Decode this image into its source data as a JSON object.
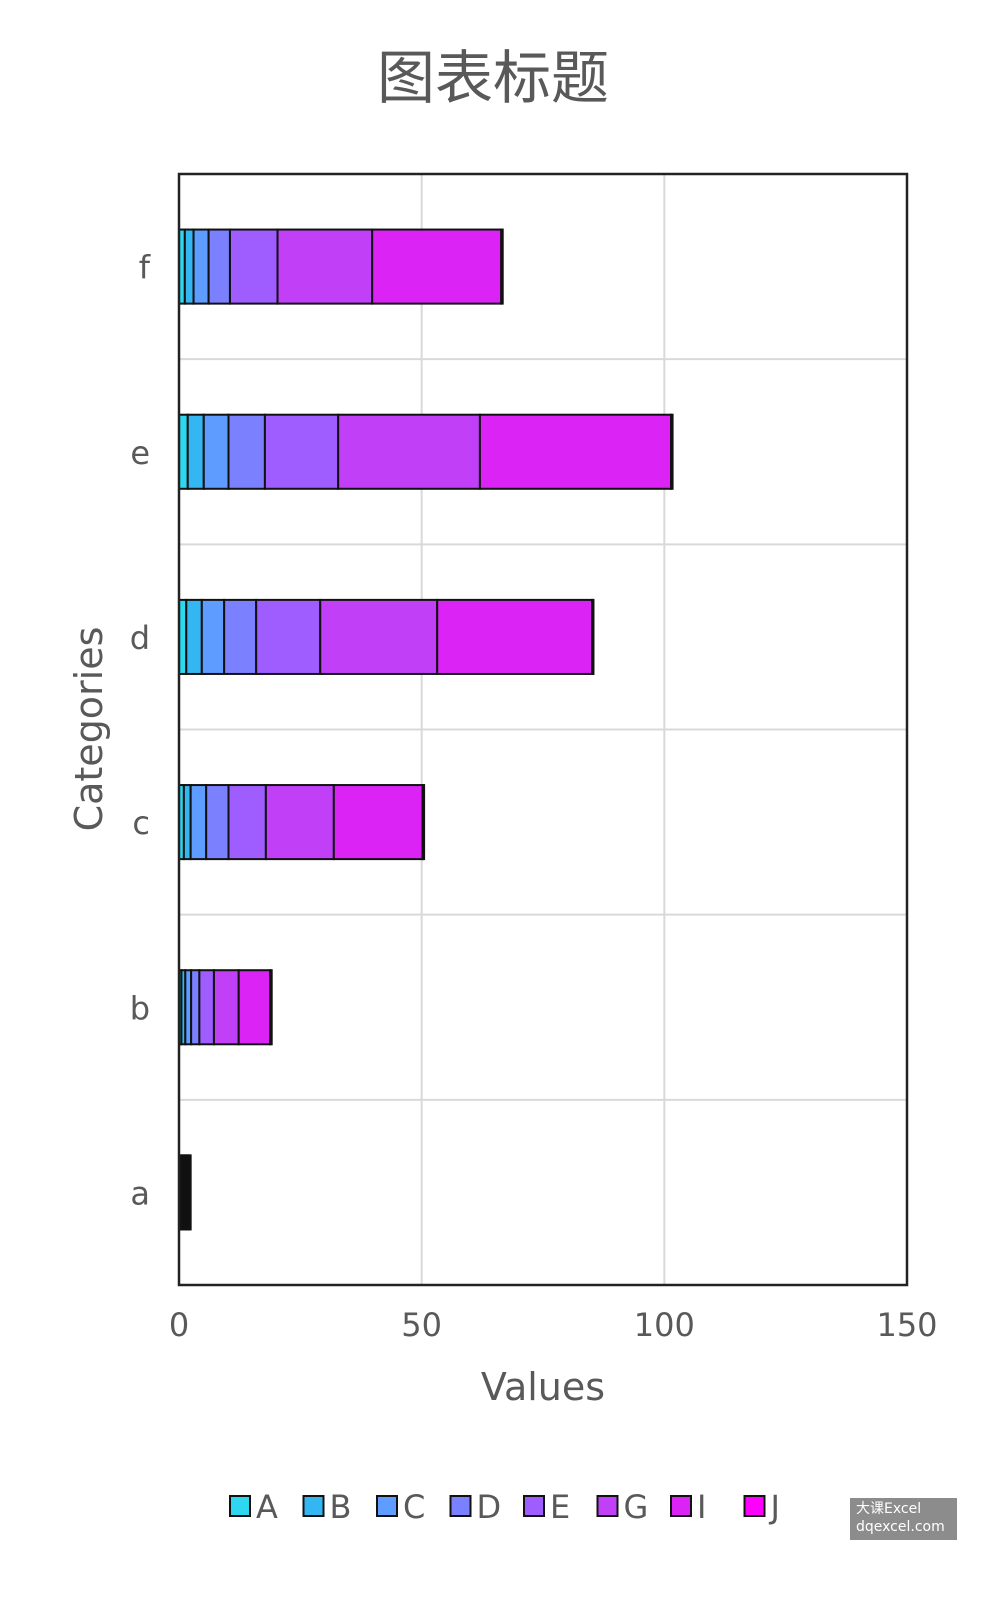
{
  "chart_data": {
    "type": "bar",
    "orientation": "horizontal",
    "stacked": true,
    "title": "图表标题",
    "xlabel": "Values",
    "ylabel": "Categories",
    "xlim": [
      0,
      150
    ],
    "x_ticks": [
      "0",
      "50",
      "100",
      "150"
    ],
    "categories": [
      "a",
      "b",
      "c",
      "d",
      "e",
      "f"
    ],
    "grid": true,
    "legend_position": "bottom",
    "series": [
      {
        "name": "A",
        "color": "#2ed6f0",
        "values": [
          0.3,
          0.5,
          1.0,
          1.5,
          1.8,
          1.2
        ]
      },
      {
        "name": "B",
        "color": "#33b6f2",
        "values": [
          0.3,
          0.8,
          1.4,
          3.2,
          3.3,
          1.8
        ]
      },
      {
        "name": "C",
        "color": "#5e9cff",
        "values": [
          0.3,
          1.2,
          3.2,
          4.6,
          5.1,
          3.1
        ]
      },
      {
        "name": "D",
        "color": "#7b80ff",
        "values": [
          0.3,
          1.7,
          4.6,
          6.6,
          7.5,
          4.4
        ]
      },
      {
        "name": "E",
        "color": "#9f5cff",
        "values": [
          0.3,
          3.0,
          7.7,
          13.2,
          15.1,
          9.8
        ]
      },
      {
        "name": "G",
        "color": "#c03ff7",
        "values": [
          0.3,
          5.1,
          14.0,
          24.1,
          29.2,
          19.5
        ]
      },
      {
        "name": "I",
        "color": "#db23f5",
        "values": [
          0.3,
          6.5,
          18.3,
          31.9,
          39.4,
          26.6
        ]
      },
      {
        "name": "J",
        "color": "#ff00ff",
        "values": [
          0.3,
          0.3,
          0.3,
          0.3,
          0.3,
          0.3
        ]
      }
    ]
  },
  "watermark": {
    "line1": "大课Excel",
    "line2": "dqexcel.com"
  }
}
